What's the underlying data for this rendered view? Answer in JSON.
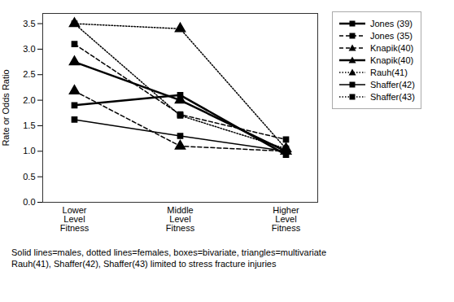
{
  "chart_data": {
    "type": "line",
    "categories": [
      "Lower\nLevel\nFitness",
      "Middle\nLevel\nFitness",
      "Higher\nLevel\nFitness"
    ],
    "series": [
      {
        "name": "Jones (39)",
        "values": [
          1.9,
          2.1,
          0.93
        ],
        "color": "#000000",
        "marker": "square",
        "line_style": "solid"
      },
      {
        "name": "Jones (35)",
        "values": [
          3.1,
          1.72,
          1.23
        ],
        "color": "#000000",
        "marker": "square",
        "line_style": "dashed"
      },
      {
        "name": "Knapik(40)",
        "values": [
          2.18,
          1.1,
          1.0
        ],
        "color": "#000000",
        "marker": "triangle",
        "line_style": "dashed"
      },
      {
        "name": "Knapik(40)",
        "values": [
          2.75,
          2.0,
          1.0
        ],
        "color": "#000000",
        "marker": "triangle",
        "line_style": "solid"
      },
      {
        "name": "Rauh(41)",
        "values": [
          3.5,
          3.4,
          1.05
        ],
        "color": "#000000",
        "marker": "triangle",
        "line_style": "dotted"
      },
      {
        "name": "Shaffer(42)",
        "values": [
          1.62,
          1.3,
          1.0
        ],
        "color": "#000000",
        "marker": "square",
        "line_style": "solid"
      },
      {
        "name": "Shaffer(43)",
        "values": [
          3.5,
          1.7,
          1.05
        ],
        "color": "#000000",
        "marker": "square",
        "line_style": "dotted"
      }
    ],
    "ylabel": "Rate or Odds Ratio",
    "ylim": [
      0,
      3.7
    ],
    "yticks": [
      {
        "value": 0,
        "label": "0.0"
      },
      0.5,
      {
        "value": 1,
        "label": "1.0"
      },
      1.5,
      {
        "value": 2,
        "label": "2.0"
      },
      2.5,
      {
        "value": 3,
        "label": "3.0"
      },
      3.5
    ],
    "legend": "right",
    "annotations": [
      "Solid lines=males, dotted lines=females, boxes=bivariate, triangles=multivariate",
      "Rauh(41), Shaffer(42), Shaffer(43) limited to stress fracture injuries"
    ]
  }
}
